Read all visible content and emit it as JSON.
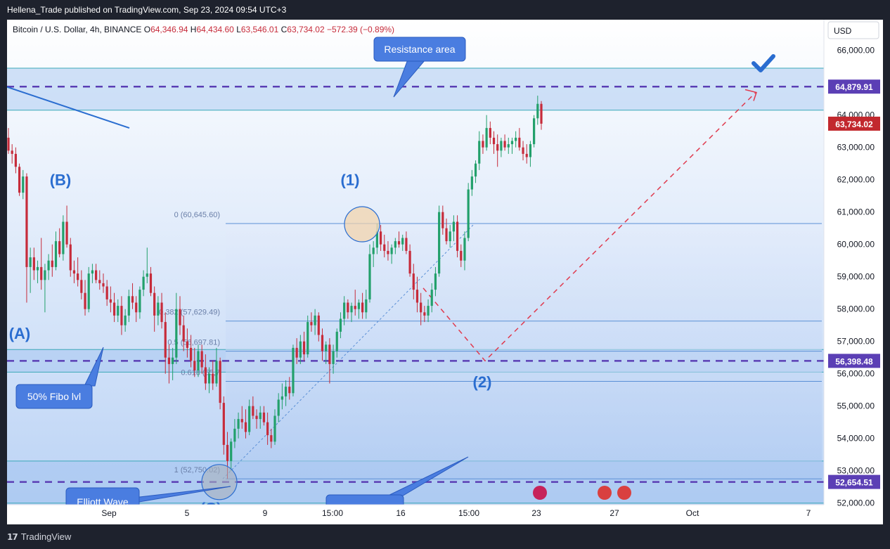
{
  "header": {
    "published": "Hellena_Trade published on TradingView.com, Sep 23, 2024 09:54 UTC+3"
  },
  "chart_data": {
    "type": "candlestick",
    "symbol": "Bitcoin / U.S. Dollar, 4h, BINANCE",
    "ohlc_text": {
      "o_label": "O",
      "o": "64,346.94",
      "h_label": "H",
      "h": "64,434.60",
      "l_label": "L",
      "l": "63,546.01",
      "c_label": "C",
      "c": "63,734.02",
      "change": "−572.39 (−0.89%)"
    },
    "currency": "USD",
    "ylim": [
      51950,
      66950
    ],
    "yticks": [
      {
        "v": 66000,
        "label": "66,000.00"
      },
      {
        "v": 64000,
        "label": "64,000.00"
      },
      {
        "v": 63000,
        "label": "63,000.00"
      },
      {
        "v": 62000,
        "label": "62,000.00"
      },
      {
        "v": 61000,
        "label": "61,000.00"
      },
      {
        "v": 60000,
        "label": "60,000.00"
      },
      {
        "v": 59000,
        "label": "59,000.00"
      },
      {
        "v": 58000,
        "label": "58,000.00"
      },
      {
        "v": 57000,
        "label": "57,000.00"
      },
      {
        "v": 56000,
        "label": "56,000.00"
      },
      {
        "v": 55000,
        "label": "55,000.00"
      },
      {
        "v": 54000,
        "label": "54,000.00"
      },
      {
        "v": 53000,
        "label": "53,000.00"
      },
      {
        "v": 52000,
        "label": "52,000.00"
      }
    ],
    "price_labels": [
      {
        "v": 64879.91,
        "label": "64,879.91",
        "color": "#5b3fb5"
      },
      {
        "v": 63734.02,
        "label": "63,734.02",
        "color": "#c2282e"
      },
      {
        "v": 56398.48,
        "label": "56,398.48",
        "color": "#5b3fb5"
      },
      {
        "v": 52654.51,
        "label": "52,654.51",
        "color": "#5b3fb5"
      }
    ],
    "xticks": [
      {
        "label": "Sep",
        "x": 145
      },
      {
        "label": "5",
        "x": 256
      },
      {
        "label": "9",
        "x": 367
      },
      {
        "label": "15:00",
        "x": 463
      },
      {
        "label": "16",
        "x": 560
      },
      {
        "label": "15:00",
        "x": 657
      },
      {
        "label": "23",
        "x": 753
      },
      {
        "label": "27",
        "x": 864
      },
      {
        "label": "Oct",
        "x": 975
      },
      {
        "label": "7",
        "x": 1140
      }
    ],
    "fib_levels": [
      {
        "label": "0 (60,645.60)",
        "v": 60645.6
      },
      {
        "label": "0.382 (57,629.49)",
        "v": 57629.49
      },
      {
        "label": "0.5 (56,697.81)",
        "v": 56697.81
      },
      {
        "label": "0.618 (55,7",
        "v": 55766.1
      },
      {
        "label": "1 (52,750.02)",
        "v": 52750.02
      }
    ],
    "zones": [
      {
        "from": 64150,
        "to": 65450
      },
      {
        "from": 56050,
        "to": 56750
      },
      {
        "from": 52000,
        "to": 53300
      }
    ],
    "dashed_levels": [
      64879.91,
      56398.48,
      52654.51
    ],
    "wave_labels": [
      {
        "label": "(B)",
        "x": 76,
        "v": 62000
      },
      {
        "label": "(A)",
        "x": 18,
        "v": 57250
      },
      {
        "label": "(1)",
        "x": 488,
        "v": 62000
      },
      {
        "label": "(2)",
        "x": 676,
        "v": 55750
      },
      {
        "label": "(C)",
        "x": 290,
        "v": 51850
      }
    ],
    "callouts": [
      {
        "label": "Resistance area"
      },
      {
        "label": "50% Fibo lvl"
      },
      {
        "label": "Elliott Wave"
      }
    ],
    "candles_4h": [
      {
        "o": 63300,
        "h": 63600,
        "l": 62800,
        "c": 62900
      },
      {
        "o": 62900,
        "h": 63100,
        "l": 62500,
        "c": 62800
      },
      {
        "o": 62800,
        "h": 63000,
        "l": 62200,
        "c": 62400
      },
      {
        "o": 62400,
        "h": 62500,
        "l": 61500,
        "c": 61600
      },
      {
        "o": 61600,
        "h": 62300,
        "l": 61400,
        "c": 62100
      },
      {
        "o": 62100,
        "h": 62200,
        "l": 58200,
        "c": 59300
      },
      {
        "o": 59300,
        "h": 59900,
        "l": 58500,
        "c": 59600
      },
      {
        "o": 59600,
        "h": 59900,
        "l": 58900,
        "c": 59200
      },
      {
        "o": 59200,
        "h": 59500,
        "l": 58800,
        "c": 59300
      },
      {
        "o": 59300,
        "h": 60200,
        "l": 58600,
        "c": 58900
      },
      {
        "o": 58900,
        "h": 59400,
        "l": 57900,
        "c": 59200
      },
      {
        "o": 59200,
        "h": 59700,
        "l": 58900,
        "c": 59500
      },
      {
        "o": 59500,
        "h": 60000,
        "l": 59000,
        "c": 59300
      },
      {
        "o": 59300,
        "h": 60400,
        "l": 59200,
        "c": 60100
      },
      {
        "o": 60100,
        "h": 60500,
        "l": 59600,
        "c": 59700
      },
      {
        "o": 59700,
        "h": 60900,
        "l": 59500,
        "c": 60700
      },
      {
        "o": 60700,
        "h": 61200,
        "l": 59900,
        "c": 60000
      },
      {
        "o": 60000,
        "h": 60200,
        "l": 59000,
        "c": 59200
      },
      {
        "o": 59200,
        "h": 59500,
        "l": 58800,
        "c": 59100
      },
      {
        "o": 59100,
        "h": 59600,
        "l": 58700,
        "c": 58900
      },
      {
        "o": 58900,
        "h": 59200,
        "l": 58300,
        "c": 58500
      },
      {
        "o": 58500,
        "h": 58900,
        "l": 57800,
        "c": 58000
      },
      {
        "o": 58000,
        "h": 59300,
        "l": 57900,
        "c": 59100
      },
      {
        "o": 59100,
        "h": 59400,
        "l": 58800,
        "c": 59200
      },
      {
        "o": 59200,
        "h": 59400,
        "l": 58800,
        "c": 58900
      },
      {
        "o": 58900,
        "h": 59200,
        "l": 58600,
        "c": 58800
      },
      {
        "o": 58800,
        "h": 59100,
        "l": 58500,
        "c": 58700
      },
      {
        "o": 58700,
        "h": 58900,
        "l": 58100,
        "c": 58300
      },
      {
        "o": 58300,
        "h": 58700,
        "l": 57900,
        "c": 58200
      },
      {
        "o": 58200,
        "h": 58500,
        "l": 57600,
        "c": 57800
      },
      {
        "o": 57800,
        "h": 58300,
        "l": 57600,
        "c": 58100
      },
      {
        "o": 58100,
        "h": 58400,
        "l": 57200,
        "c": 57500
      },
      {
        "o": 57500,
        "h": 58000,
        "l": 57300,
        "c": 57800
      },
      {
        "o": 57800,
        "h": 58600,
        "l": 57600,
        "c": 58400
      },
      {
        "o": 58400,
        "h": 58800,
        "l": 58000,
        "c": 58200
      },
      {
        "o": 58200,
        "h": 58400,
        "l": 57600,
        "c": 57900
      },
      {
        "o": 57900,
        "h": 58700,
        "l": 57700,
        "c": 58600
      },
      {
        "o": 58600,
        "h": 59200,
        "l": 58400,
        "c": 59000
      },
      {
        "o": 59000,
        "h": 59900,
        "l": 58800,
        "c": 59100
      },
      {
        "o": 59100,
        "h": 59300,
        "l": 58400,
        "c": 58500
      },
      {
        "o": 58500,
        "h": 58700,
        "l": 57300,
        "c": 57800
      },
      {
        "o": 57800,
        "h": 58400,
        "l": 57500,
        "c": 58200
      },
      {
        "o": 58200,
        "h": 58500,
        "l": 57400,
        "c": 57600
      },
      {
        "o": 57600,
        "h": 57900,
        "l": 56000,
        "c": 56500
      },
      {
        "o": 56500,
        "h": 56900,
        "l": 55700,
        "c": 56300
      },
      {
        "o": 56300,
        "h": 56800,
        "l": 55800,
        "c": 56500
      },
      {
        "o": 56500,
        "h": 58500,
        "l": 56300,
        "c": 58000
      },
      {
        "o": 58000,
        "h": 58400,
        "l": 57200,
        "c": 57500
      },
      {
        "o": 57500,
        "h": 57800,
        "l": 56700,
        "c": 57000
      },
      {
        "o": 57000,
        "h": 57400,
        "l": 56500,
        "c": 56800
      },
      {
        "o": 56800,
        "h": 57200,
        "l": 56200,
        "c": 56400
      },
      {
        "o": 56400,
        "h": 56800,
        "l": 55900,
        "c": 56100
      },
      {
        "o": 56100,
        "h": 56900,
        "l": 55900,
        "c": 56700
      },
      {
        "o": 56700,
        "h": 56900,
        "l": 56000,
        "c": 56200
      },
      {
        "o": 56200,
        "h": 56600,
        "l": 55500,
        "c": 55700
      },
      {
        "o": 55700,
        "h": 56200,
        "l": 55400,
        "c": 56000
      },
      {
        "o": 56000,
        "h": 56400,
        "l": 55500,
        "c": 55700
      },
      {
        "o": 55700,
        "h": 56800,
        "l": 55600,
        "c": 56400
      },
      {
        "o": 56400,
        "h": 56500,
        "l": 54900,
        "c": 55100
      },
      {
        "o": 55100,
        "h": 55300,
        "l": 53500,
        "c": 53800
      },
      {
        "o": 53800,
        "h": 54200,
        "l": 52750,
        "c": 53300
      },
      {
        "o": 53300,
        "h": 54000,
        "l": 53000,
        "c": 53900
      },
      {
        "o": 53900,
        "h": 54600,
        "l": 53700,
        "c": 54300
      },
      {
        "o": 54300,
        "h": 54800,
        "l": 54000,
        "c": 54600
      },
      {
        "o": 54600,
        "h": 55000,
        "l": 54300,
        "c": 54500
      },
      {
        "o": 54500,
        "h": 54900,
        "l": 54000,
        "c": 54200
      },
      {
        "o": 54200,
        "h": 55200,
        "l": 54100,
        "c": 55000
      },
      {
        "o": 55000,
        "h": 55300,
        "l": 54600,
        "c": 54700
      },
      {
        "o": 54700,
        "h": 54900,
        "l": 54300,
        "c": 54600
      },
      {
        "o": 54600,
        "h": 55000,
        "l": 54300,
        "c": 54800
      },
      {
        "o": 54800,
        "h": 55000,
        "l": 54400,
        "c": 54500
      },
      {
        "o": 54500,
        "h": 54800,
        "l": 53800,
        "c": 54100
      },
      {
        "o": 54100,
        "h": 54300,
        "l": 53700,
        "c": 53900
      },
      {
        "o": 53900,
        "h": 54900,
        "l": 53800,
        "c": 54700
      },
      {
        "o": 54700,
        "h": 55400,
        "l": 54500,
        "c": 55200
      },
      {
        "o": 55200,
        "h": 55700,
        "l": 54900,
        "c": 55300
      },
      {
        "o": 55300,
        "h": 55800,
        "l": 55000,
        "c": 55600
      },
      {
        "o": 55600,
        "h": 55900,
        "l": 55200,
        "c": 55400
      },
      {
        "o": 55400,
        "h": 56900,
        "l": 55300,
        "c": 56800
      },
      {
        "o": 56800,
        "h": 57100,
        "l": 56300,
        "c": 56500
      },
      {
        "o": 56500,
        "h": 57200,
        "l": 56300,
        "c": 57000
      },
      {
        "o": 57000,
        "h": 57300,
        "l": 56400,
        "c": 56600
      },
      {
        "o": 56600,
        "h": 57800,
        "l": 56500,
        "c": 57600
      },
      {
        "o": 57600,
        "h": 57900,
        "l": 57300,
        "c": 57500
      },
      {
        "o": 57500,
        "h": 58000,
        "l": 57200,
        "c": 57800
      },
      {
        "o": 57800,
        "h": 57900,
        "l": 57000,
        "c": 57200
      },
      {
        "o": 57200,
        "h": 57400,
        "l": 56400,
        "c": 56700
      },
      {
        "o": 56700,
        "h": 57000,
        "l": 56300,
        "c": 56900
      },
      {
        "o": 56900,
        "h": 57100,
        "l": 55700,
        "c": 56300
      },
      {
        "o": 56300,
        "h": 56900,
        "l": 56000,
        "c": 56700
      },
      {
        "o": 56700,
        "h": 57400,
        "l": 56500,
        "c": 57300
      },
      {
        "o": 57300,
        "h": 57900,
        "l": 57100,
        "c": 57700
      },
      {
        "o": 57700,
        "h": 58400,
        "l": 57500,
        "c": 58200
      },
      {
        "o": 58200,
        "h": 58300,
        "l": 57700,
        "c": 57900
      },
      {
        "o": 57900,
        "h": 58200,
        "l": 57600,
        "c": 58100
      },
      {
        "o": 58100,
        "h": 58600,
        "l": 57800,
        "c": 58000
      },
      {
        "o": 58000,
        "h": 58300,
        "l": 57700,
        "c": 58200
      },
      {
        "o": 58200,
        "h": 58500,
        "l": 57700,
        "c": 57900
      },
      {
        "o": 57900,
        "h": 58600,
        "l": 57700,
        "c": 58300
      },
      {
        "o": 58300,
        "h": 60000,
        "l": 58200,
        "c": 59700
      },
      {
        "o": 59700,
        "h": 60100,
        "l": 59300,
        "c": 59900
      },
      {
        "o": 59900,
        "h": 60645,
        "l": 59700,
        "c": 60400
      },
      {
        "o": 60400,
        "h": 60600,
        "l": 59800,
        "c": 60000
      },
      {
        "o": 60000,
        "h": 60300,
        "l": 59600,
        "c": 59800
      },
      {
        "o": 59800,
        "h": 60100,
        "l": 59500,
        "c": 59700
      },
      {
        "o": 59700,
        "h": 60000,
        "l": 59400,
        "c": 59900
      },
      {
        "o": 59900,
        "h": 60200,
        "l": 59700,
        "c": 60100
      },
      {
        "o": 60100,
        "h": 60400,
        "l": 59900,
        "c": 60000
      },
      {
        "o": 60000,
        "h": 60300,
        "l": 59800,
        "c": 60200
      },
      {
        "o": 60200,
        "h": 60400,
        "l": 59700,
        "c": 59800
      },
      {
        "o": 59800,
        "h": 60000,
        "l": 59000,
        "c": 59100
      },
      {
        "o": 59100,
        "h": 59400,
        "l": 58300,
        "c": 58600
      },
      {
        "o": 58600,
        "h": 59000,
        "l": 57900,
        "c": 58200
      },
      {
        "o": 58200,
        "h": 58500,
        "l": 57500,
        "c": 57900
      },
      {
        "o": 57900,
        "h": 58100,
        "l": 57600,
        "c": 57800
      },
      {
        "o": 57800,
        "h": 58300,
        "l": 57600,
        "c": 58100
      },
      {
        "o": 58100,
        "h": 58800,
        "l": 57900,
        "c": 58600
      },
      {
        "o": 58600,
        "h": 59300,
        "l": 58400,
        "c": 59100
      },
      {
        "o": 59100,
        "h": 61200,
        "l": 59000,
        "c": 61000
      },
      {
        "o": 61000,
        "h": 61200,
        "l": 60300,
        "c": 60500
      },
      {
        "o": 60500,
        "h": 60800,
        "l": 60000,
        "c": 60100
      },
      {
        "o": 60100,
        "h": 60600,
        "l": 59900,
        "c": 60400
      },
      {
        "o": 60400,
        "h": 60900,
        "l": 60100,
        "c": 60700
      },
      {
        "o": 60700,
        "h": 60900,
        "l": 59600,
        "c": 59800
      },
      {
        "o": 59800,
        "h": 60000,
        "l": 59300,
        "c": 59500
      },
      {
        "o": 59500,
        "h": 60400,
        "l": 59200,
        "c": 60200
      },
      {
        "o": 60200,
        "h": 61900,
        "l": 60100,
        "c": 61700
      },
      {
        "o": 61700,
        "h": 62300,
        "l": 61500,
        "c": 62100
      },
      {
        "o": 62100,
        "h": 62600,
        "l": 61900,
        "c": 62500
      },
      {
        "o": 62500,
        "h": 63500,
        "l": 62300,
        "c": 63200
      },
      {
        "o": 63200,
        "h": 63400,
        "l": 62800,
        "c": 63000
      },
      {
        "o": 63000,
        "h": 64000,
        "l": 62900,
        "c": 63600
      },
      {
        "o": 63600,
        "h": 63800,
        "l": 63100,
        "c": 63300
      },
      {
        "o": 63300,
        "h": 63500,
        "l": 62800,
        "c": 63100
      },
      {
        "o": 63100,
        "h": 63400,
        "l": 62400,
        "c": 62900
      },
      {
        "o": 62900,
        "h": 63300,
        "l": 62700,
        "c": 63200
      },
      {
        "o": 63200,
        "h": 63400,
        "l": 62900,
        "c": 63000
      },
      {
        "o": 63000,
        "h": 63300,
        "l": 62800,
        "c": 63100
      },
      {
        "o": 63100,
        "h": 63300,
        "l": 62800,
        "c": 63200
      },
      {
        "o": 63200,
        "h": 63500,
        "l": 63000,
        "c": 63300
      },
      {
        "o": 63300,
        "h": 63600,
        "l": 62900,
        "c": 63000
      },
      {
        "o": 63000,
        "h": 63200,
        "l": 62600,
        "c": 62800
      },
      {
        "o": 62800,
        "h": 63100,
        "l": 62500,
        "c": 62700
      },
      {
        "o": 62700,
        "h": 63200,
        "l": 62400,
        "c": 63100
      },
      {
        "o": 63100,
        "h": 64000,
        "l": 63000,
        "c": 63900
      },
      {
        "o": 63900,
        "h": 64600,
        "l": 63700,
        "c": 64347
      },
      {
        "o": 64347,
        "h": 64435,
        "l": 63546,
        "c": 63734
      }
    ]
  }
}
